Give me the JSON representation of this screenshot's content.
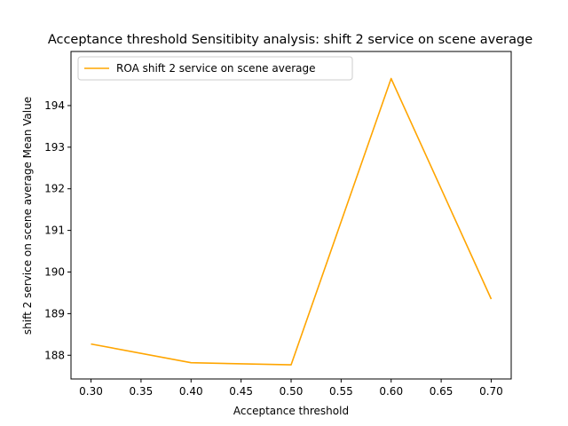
{
  "chart_data": {
    "type": "line",
    "title": "Acceptance threshold Sensitibity analysis: shift 2 service on scene average",
    "xlabel": "Acceptance threshold",
    "ylabel": "shift 2 service on scene average Mean Value",
    "xlim": [
      0.28,
      0.72
    ],
    "ylim": [
      187.43,
      195.3
    ],
    "xticks": [
      0.3,
      0.35,
      0.4,
      0.45,
      0.5,
      0.55,
      0.6,
      0.65,
      0.7
    ],
    "xtick_labels": [
      "0.30",
      "0.35",
      "0.40",
      "0.45",
      "0.50",
      "0.55",
      "0.60",
      "0.65",
      "0.70"
    ],
    "yticks": [
      188,
      189,
      190,
      191,
      192,
      193,
      194
    ],
    "ytick_labels": [
      "188",
      "189",
      "190",
      "191",
      "192",
      "193",
      "194"
    ],
    "grid": false,
    "legend_position": "top-left",
    "series": [
      {
        "name": "ROA shift 2 service on scene average",
        "color": "#ffa500",
        "x": [
          0.3,
          0.4,
          0.5,
          0.6,
          0.7
        ],
        "y": [
          188.27,
          187.82,
          187.77,
          194.65,
          189.35
        ]
      }
    ]
  }
}
